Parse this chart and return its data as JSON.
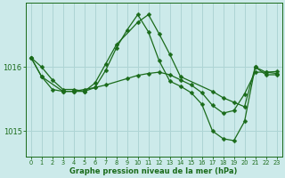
{
  "xlabel": "Graphe pression niveau de la mer (hPa)",
  "bg_color": "#cceaea",
  "line_color": "#1a6b1a",
  "grid_color": "#aed4d4",
  "series1_x": [
    0,
    1,
    2,
    3,
    4,
    5,
    6,
    7,
    8,
    10,
    11,
    12,
    13,
    14,
    17,
    18,
    19,
    20,
    21,
    22,
    23
  ],
  "series1_y": [
    1016.15,
    1016.0,
    1015.8,
    1015.65,
    1015.65,
    1015.62,
    1015.75,
    1016.05,
    1016.35,
    1016.7,
    1016.82,
    1016.52,
    1016.2,
    1015.85,
    1015.62,
    1015.52,
    1015.45,
    1015.38,
    1016.0,
    1015.92,
    1015.93
  ],
  "series2_x": [
    0,
    1,
    2,
    3,
    4,
    5,
    6,
    7,
    9,
    10,
    11,
    12,
    13,
    14,
    15,
    16,
    17,
    18,
    19,
    20,
    21,
    22,
    23
  ],
  "series2_y": [
    1016.15,
    1015.85,
    1015.65,
    1015.62,
    1015.62,
    1015.65,
    1015.68,
    1015.72,
    1015.82,
    1015.87,
    1015.9,
    1015.92,
    1015.88,
    1015.8,
    1015.72,
    1015.6,
    1015.4,
    1015.28,
    1015.32,
    1015.58,
    1015.92,
    1015.92,
    1015.9
  ],
  "series3_x": [
    0,
    1,
    3,
    4,
    5,
    6,
    7,
    8,
    9,
    10,
    11,
    12,
    13,
    14,
    15,
    16,
    17,
    18,
    19,
    20,
    21,
    22,
    23
  ],
  "series3_y": [
    1016.15,
    1015.85,
    1015.62,
    1015.62,
    1015.62,
    1015.68,
    1015.95,
    1016.3,
    1016.58,
    1016.82,
    1016.55,
    1016.1,
    1015.78,
    1015.7,
    1015.6,
    1015.42,
    1015.0,
    1014.88,
    1014.85,
    1015.15,
    1016.0,
    1015.88,
    1015.88
  ],
  "yticks": [
    1015.0,
    1016.0
  ],
  "ylim": [
    1014.6,
    1017.0
  ],
  "xlim": [
    -0.5,
    23.5
  ],
  "xticks": [
    0,
    1,
    2,
    3,
    4,
    5,
    6,
    7,
    8,
    9,
    10,
    11,
    12,
    13,
    14,
    15,
    16,
    17,
    18,
    19,
    20,
    21,
    22,
    23
  ]
}
